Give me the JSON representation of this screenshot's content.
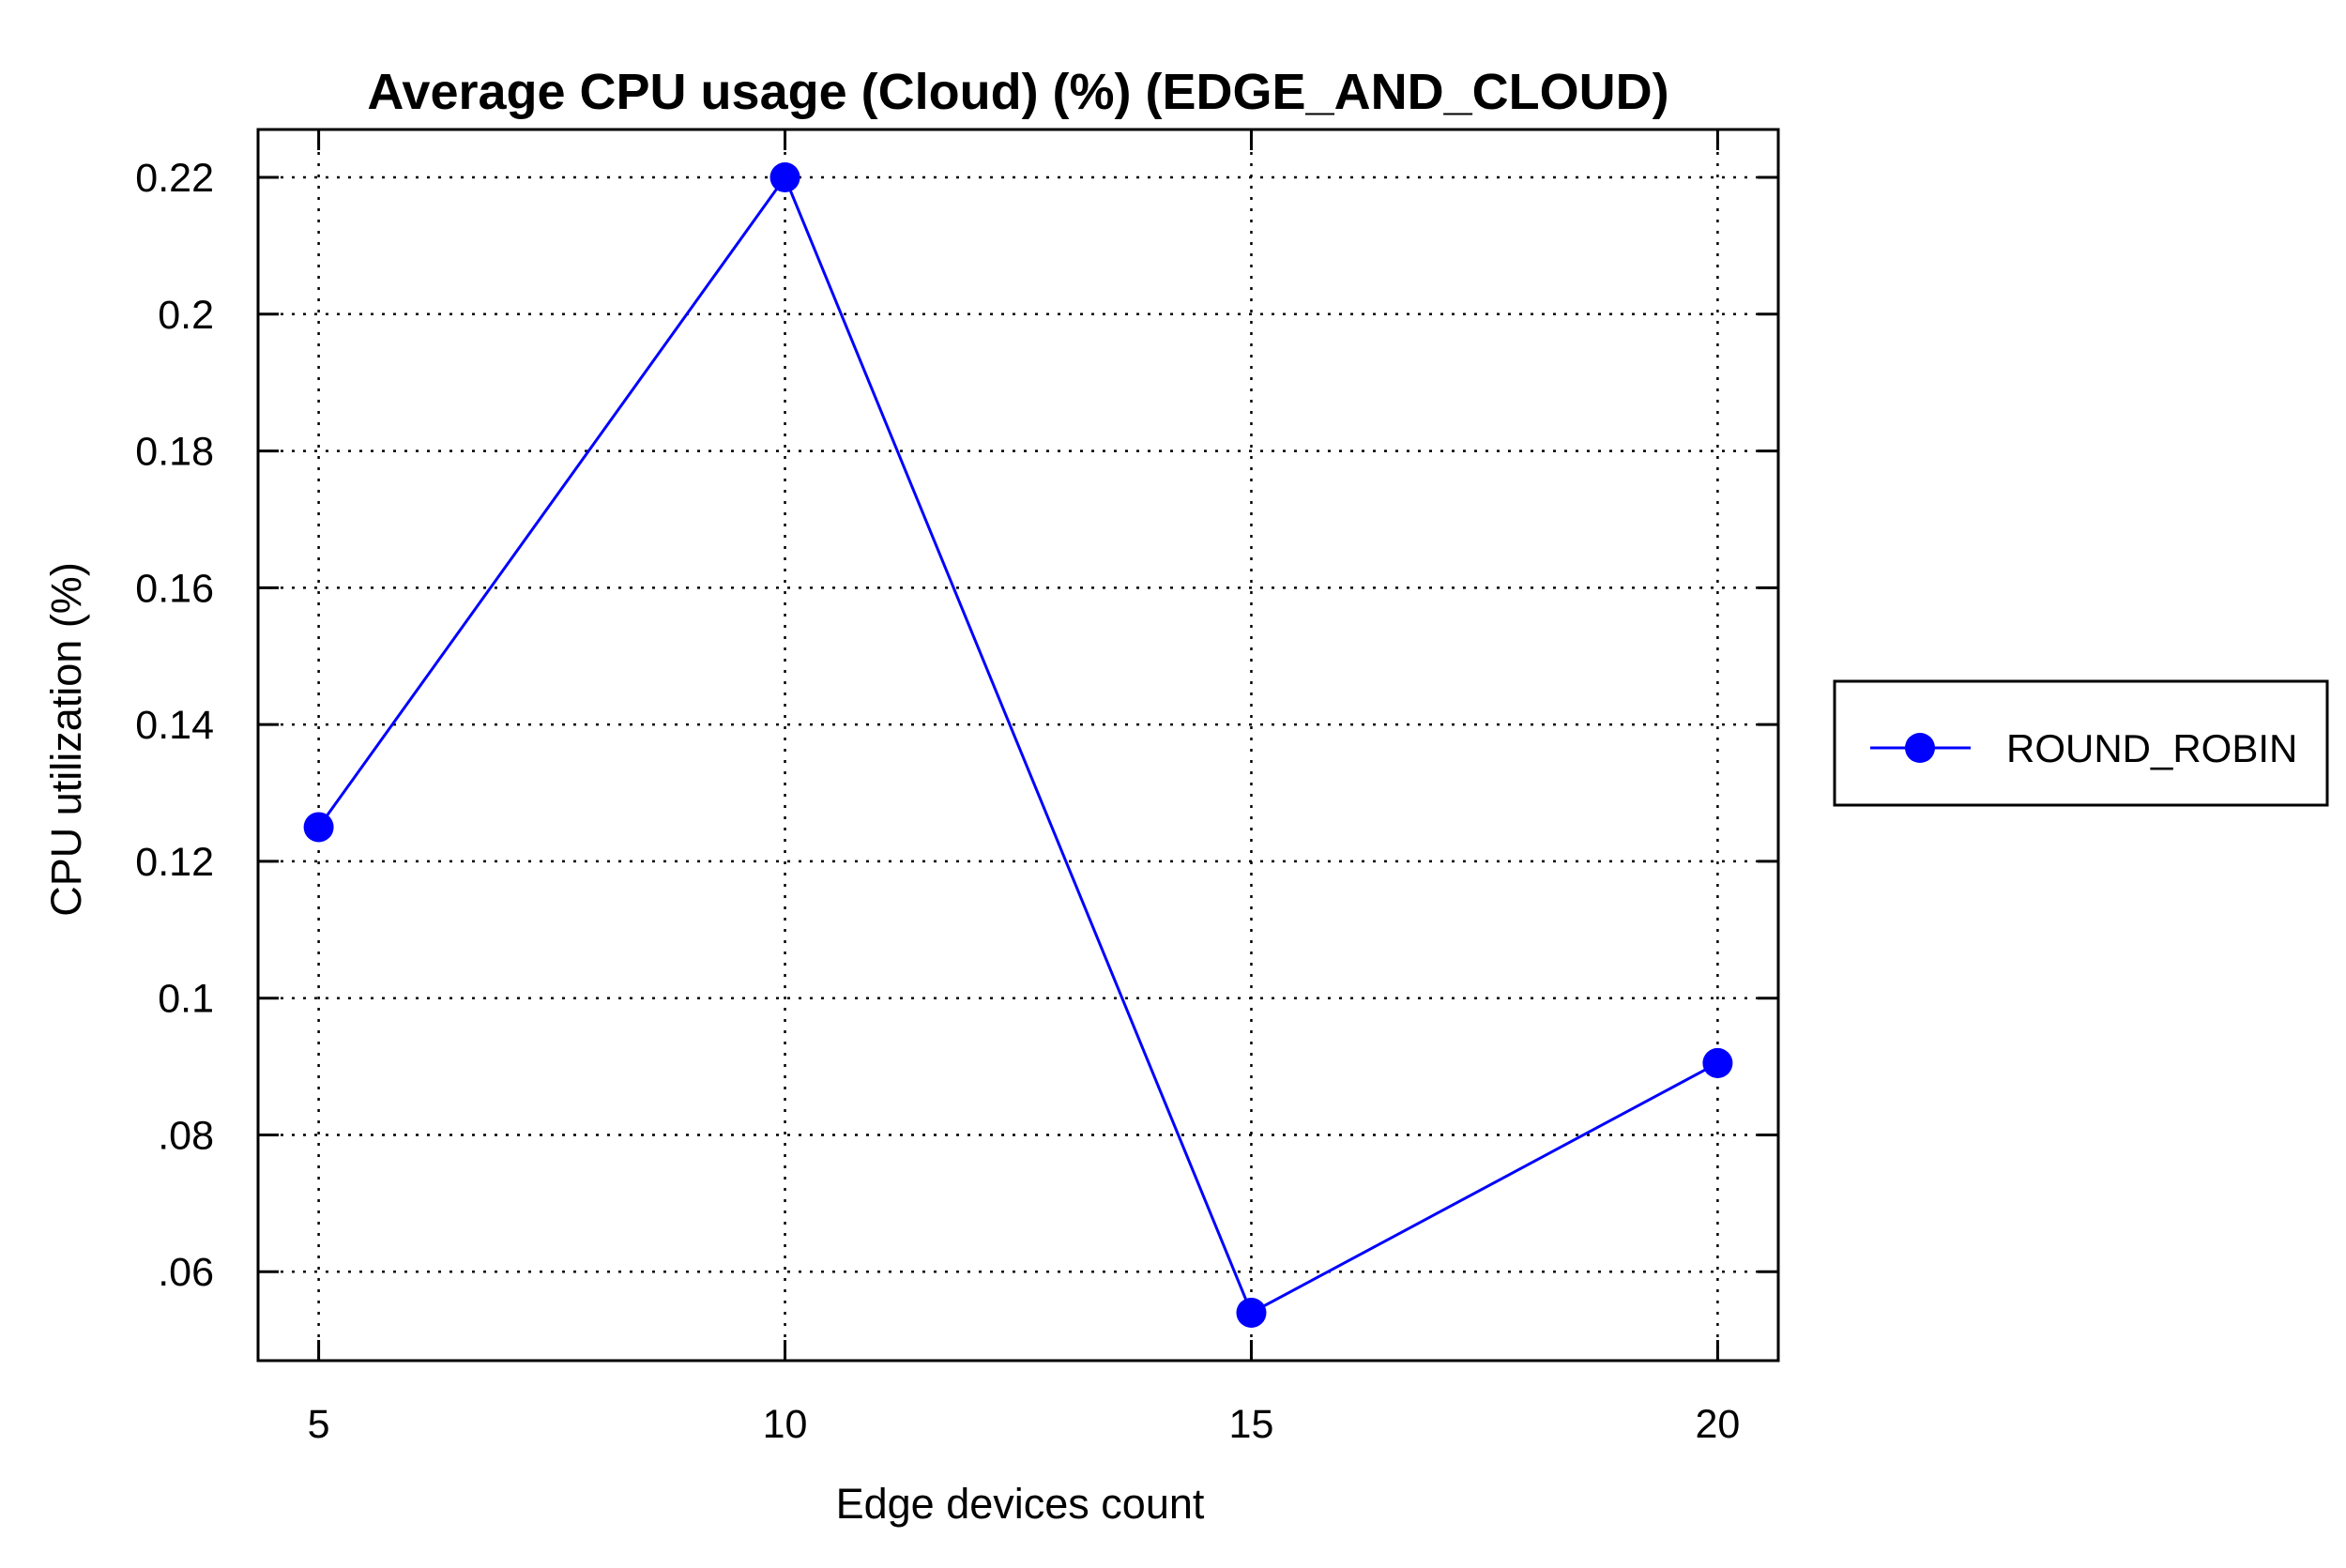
{
  "chart_data": {
    "type": "line",
    "title": "Average CPU usage (Cloud) (%) (EDGE_AND_CLOUD)",
    "xlabel": "Edge devices count",
    "ylabel": "CPU utilization (%)",
    "x": [
      5,
      10,
      15,
      20
    ],
    "xlim": [
      4.35,
      20.65
    ],
    "ylim": [
      0.047,
      0.227
    ],
    "x_ticks": [
      5,
      10,
      15,
      20
    ],
    "x_tick_labels": [
      "5",
      "10",
      "15",
      "20"
    ],
    "y_ticks": [
      0.06,
      0.08,
      0.1,
      0.12,
      0.14,
      0.16,
      0.18,
      0.2,
      0.22
    ],
    "y_tick_labels": [
      ".06",
      ".08",
      "0.1",
      "0.12",
      "0.14",
      "0.16",
      "0.18",
      "0.2",
      "0.22"
    ],
    "grid": true,
    "legend_position": "outside-right",
    "series": [
      {
        "name": "ROUND_ROBIN",
        "values": [
          0.125,
          0.22,
          0.054,
          0.0905
        ],
        "color": "#0000ff",
        "marker": "circle"
      }
    ]
  }
}
